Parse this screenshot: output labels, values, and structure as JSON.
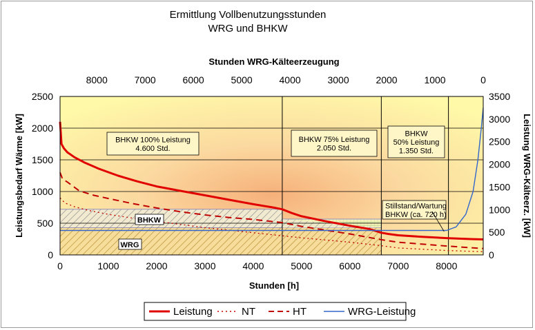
{
  "chart_data": {
    "type": "line",
    "title": "Ermittlung Vollbenutzungsstunden",
    "subtitle": "WRG und BHKW",
    "xlabel": "Stunden [h]",
    "x2label": "Stunden WRG-Kälteerzeugung",
    "ylabel": "Leistungsbedarf Wärme [kW]",
    "y2label": "Leistung WRG-Kälteerz. [kW]",
    "xlim": [
      0,
      8760
    ],
    "ylim": [
      0,
      2500
    ],
    "y2lim": [
      0,
      3500
    ],
    "x_ticks": [
      0,
      1000,
      2000,
      3000,
      4000,
      5000,
      6000,
      7000,
      8000
    ],
    "x2_ticks": [
      8000,
      7000,
      6000,
      5000,
      4000,
      3000,
      2000,
      1000,
      0
    ],
    "y_ticks": [
      0,
      500,
      1000,
      1500,
      2000,
      2500
    ],
    "y2_ticks": [
      0,
      500,
      1000,
      1500,
      2000,
      2500,
      3000,
      3500
    ],
    "grid": true,
    "legend_position": "bottom",
    "colors": {
      "leistung": "#e00000",
      "nt": "#c00000",
      "ht": "#c00000",
      "wrg_leistung": "#3366cc",
      "bhkw_label": "#1f3fbf",
      "wrg_label": "#e00000"
    },
    "series": [
      {
        "name": "Leistung",
        "style": "solid",
        "x": [
          0,
          30,
          80,
          150,
          300,
          500,
          800,
          1200,
          1600,
          2000,
          2500,
          3000,
          3500,
          4000,
          4400,
          4600,
          4800,
          5000,
          5500,
          6000,
          6400,
          6650,
          6800,
          7000,
          7500,
          8000,
          8500,
          8760
        ],
        "y": [
          2100,
          1750,
          1680,
          1620,
          1540,
          1460,
          1360,
          1250,
          1160,
          1080,
          1010,
          940,
          870,
          800,
          750,
          720,
          660,
          610,
          530,
          460,
          410,
          350,
          330,
          310,
          285,
          265,
          250,
          245
        ]
      },
      {
        "name": "NT",
        "style": "dotted",
        "x": [
          0,
          100,
          300,
          600,
          1000,
          1500,
          2000,
          3000,
          4000,
          5000,
          6000,
          6600,
          7000,
          8000,
          8760
        ],
        "y": [
          900,
          820,
          760,
          700,
          640,
          580,
          530,
          430,
          350,
          270,
          200,
          150,
          110,
          70,
          50
        ]
      },
      {
        "name": "HT",
        "style": "dashed",
        "x": [
          0,
          50,
          150,
          400,
          700,
          1000,
          1500,
          2000,
          2500,
          3000,
          3500,
          4000,
          4600,
          5000,
          6000,
          6650,
          7000,
          8000,
          8760
        ],
        "y": [
          1300,
          1200,
          1150,
          1010,
          940,
          890,
          810,
          740,
          680,
          630,
          590,
          560,
          510,
          450,
          330,
          240,
          200,
          140,
          100
        ]
      },
      {
        "name": "WRG-Leistung",
        "style": "solid",
        "axis": "y2",
        "x": [
          0,
          4600,
          6600,
          7400,
          8000,
          8200,
          8400,
          8550,
          8650,
          8720,
          8760
        ],
        "y": [
          540,
          540,
          540,
          540,
          540,
          620,
          900,
          1400,
          2100,
          2800,
          3250
        ]
      }
    ],
    "annotations": [
      {
        "lines": [
          "BHKW 100% Leistung",
          "4.600 Std."
        ]
      },
      {
        "lines": [
          "BHKW 75% Leistung",
          "2.050 Std."
        ]
      },
      {
        "lines": [
          "BHKW",
          "50% Leistung",
          "1.350 Std."
        ]
      },
      {
        "lines": [
          "Stillstand/Wartung",
          "BHKW (ca. 720 h)"
        ]
      }
    ],
    "area_labels": {
      "bhkw": "BHKW",
      "wrg": "WRG"
    },
    "bhkw_band": {
      "segments": [
        {
          "x": [
            0,
            4600
          ],
          "y": [
            430,
            720
          ]
        },
        {
          "x": [
            4600,
            6650
          ],
          "y": [
            430,
            565
          ]
        },
        {
          "x": [
            6650,
            8040
          ],
          "y": [
            430,
            430
          ]
        }
      ]
    },
    "wrg_area": {
      "x": [
        0,
        6650
      ],
      "y_top": 430
    },
    "dividers": [
      4600,
      6650,
      8040
    ]
  }
}
